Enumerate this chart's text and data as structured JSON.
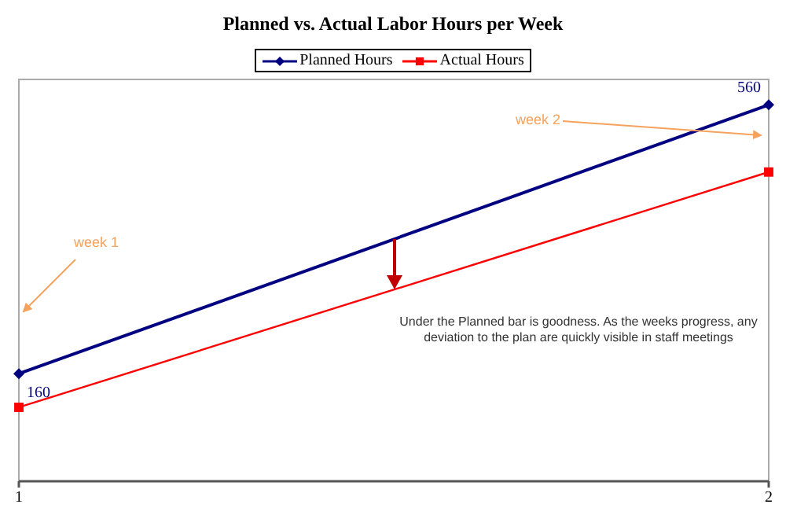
{
  "chart_data": {
    "type": "line",
    "title": "Planned vs. Actual Labor Hours per Week",
    "categories": [
      "1",
      "2"
    ],
    "series": [
      {
        "name": "Planned Hours",
        "color": "#000080",
        "values": [
          160,
          560
        ],
        "value_labels": [
          "160",
          "560"
        ],
        "marker": "diamond"
      },
      {
        "name": "Actual Hours",
        "color": "#ff0000",
        "values": [
          110,
          460
        ],
        "marker": "square"
      }
    ],
    "legend": "top",
    "grid": "x",
    "annotations": [
      "week 1",
      "week 2",
      "Under the Planned bar is goodness. As the weeks progress, any deviation to the plan are quickly visible in staff meetings"
    ]
  }
}
